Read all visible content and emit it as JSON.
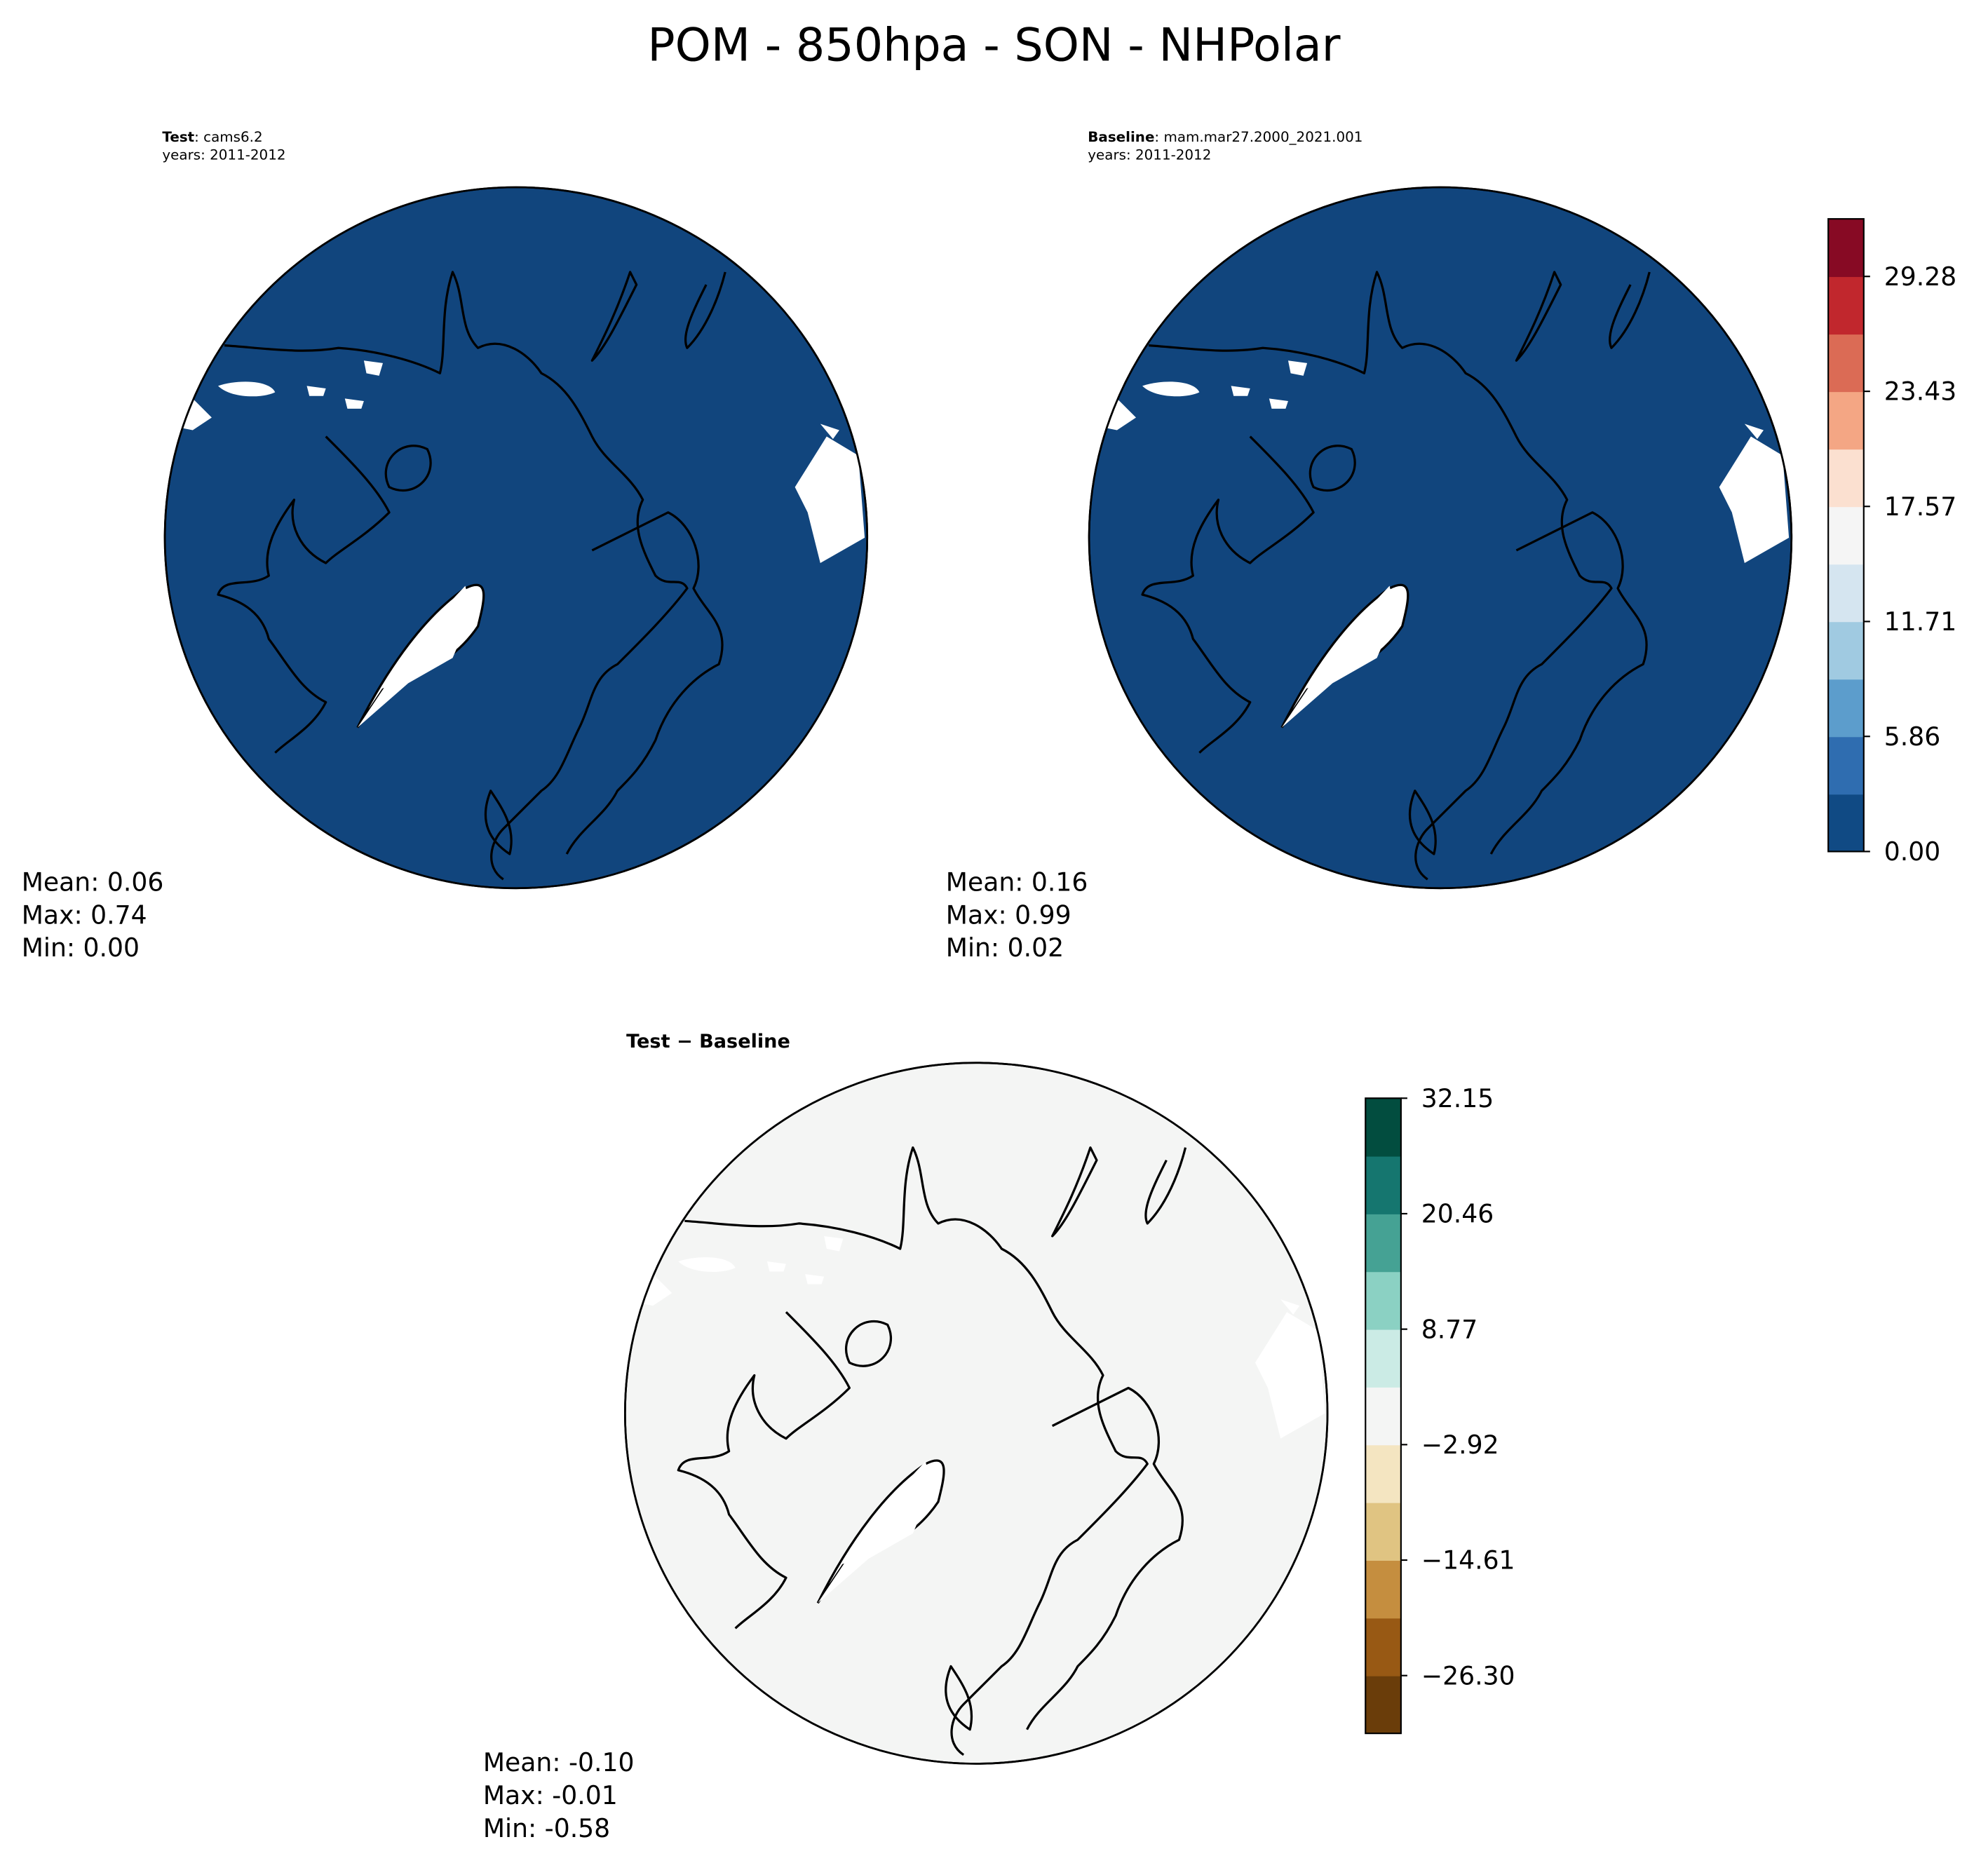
{
  "title": "POM - 850hpa - SON - NHPolar",
  "panels": [
    {
      "name": "Test",
      "case": ": cams6.2",
      "years": "years: 2011-2012",
      "fill": "#11457d",
      "stats": [
        "Mean:  0.06",
        "Max:  0.74",
        "Min:  0.00"
      ]
    },
    {
      "name": "Baseline",
      "case": ": mam.mar27.2000_2021.001",
      "years": "years: 2011-2012",
      "fill": "#11457d",
      "stats": [
        "Mean:  0.16",
        "Max:  0.99",
        "Min:  0.02"
      ]
    },
    {
      "name": "Test − Baseline",
      "fill": "#f4f5f4",
      "stats": [
        "Mean: -0.10",
        "Max: -0.01",
        "Min: -0.58"
      ]
    }
  ],
  "colorbars": [
    {
      "lim": [
        0,
        32.21
      ],
      "colors": [
        "#104a84",
        "#2f6db0",
        "#5c9dcc",
        "#a0cae1",
        "#d5e5f0",
        "#f5f5f5",
        "#fbe0d0",
        "#f4a684",
        "#db6b55",
        "#c1272d",
        "#870a24"
      ],
      "ticks": [
        {
          "value": 0,
          "label": "0.00"
        },
        5.86,
        11.71,
        17.57,
        23.43,
        29.28
      ]
    },
    {
      "lim": [
        -32.15,
        32.15
      ],
      "colors": [
        "#6a3d0a",
        "#985914",
        "#c58e3f",
        "#e0c482",
        "#f4e5c1",
        "#f4f5f4",
        "#cbebe5",
        "#8bd1c3",
        "#45a294",
        "#15766f",
        "#024d3f"
      ],
      "ticks": [
        {
          "value": -26.3,
          "label": "−26.30"
        },
        {
          "value": -14.61,
          "label": "−14.61"
        },
        {
          "value": -2.92,
          "label": "−2.92"
        },
        8.77,
        20.46,
        32.15
      ]
    }
  ]
}
